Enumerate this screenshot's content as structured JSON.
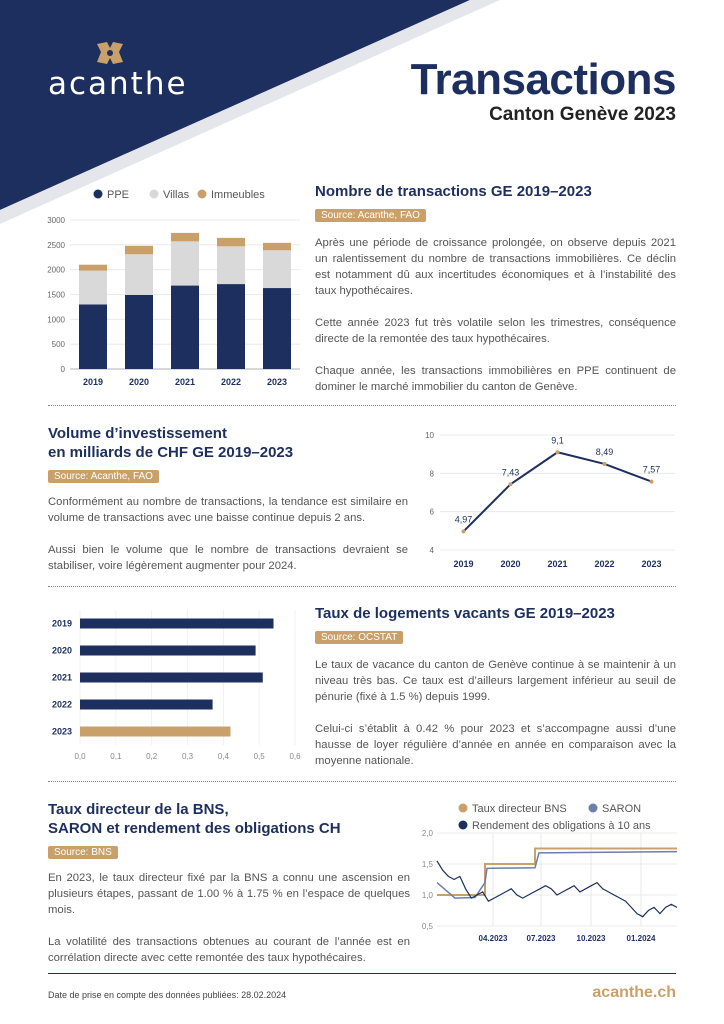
{
  "brand": {
    "name": "acanthe",
    "url": "acanthe.ch"
  },
  "header": {
    "title": "Transactions",
    "subtitle": "Canton Genève 2023"
  },
  "colors": {
    "navy": "#1d2f5e",
    "gold": "#c9a06a",
    "light": "#d9d9d9"
  },
  "section1": {
    "title": "Nombre de transactions GE 2019–2023",
    "source": "Source: Acanthe, FAO",
    "paragraphs": [
      "Après une période de croissance prolongée, on observe depuis 2021 un ralentissement du nombre de transactions immobilières. Ce déclin est notamment dû aux incertitudes économiques et à l’instabilité des taux hypothécaires.",
      "Cette année 2023 fut très volatile selon les trimestres, conséquence directe de la remontée des taux hypothécaires.",
      "Chaque année, les transactions immobilières en PPE continuent de dominer le marché immobilier du canton de Genève."
    ]
  },
  "section2": {
    "title_line1": "Volume d’investissement",
    "title_line2": "en milliards de CHF GE 2019–2023",
    "source": "Source: Acanthe, FAO",
    "paragraphs": [
      "Conformément au nombre de transactions, la tendance est similaire en volume de transactions avec une baisse continue depuis 2 ans.",
      "Aussi bien le volume que le nombre de transactions devraient se stabiliser, voire légèrement augmenter pour 2024."
    ]
  },
  "section3": {
    "title": "Taux de logements vacants GE 2019–2023",
    "source": "Source: OCSTAT",
    "paragraphs": [
      "Le taux de vacance du canton de Genève continue à se maintenir à un niveau très bas. Ce taux est d’ailleurs largement inférieur au seuil de pénurie (fixé à 1.5 %) depuis 1999.",
      "Celui-ci s’établit à 0.42 % pour 2023 et s’accompagne aussi d’une hausse de loyer régulière d’année en année en comparaison avec la moyenne nationale."
    ]
  },
  "section4": {
    "title_line1": "Taux directeur de la BNS,",
    "title_line2": "SARON et rendement des obligations CH",
    "source": "Source: BNS",
    "paragraphs": [
      "En 2023, le taux directeur fixé par la BNS a connu une ascension en plusieurs étapes, passant de 1.00 % à 1.75 % en l’espace de quelques mois.",
      "La volatilité des transactions obtenues au courant de l’année est en corrélation directe avec cette remontée des taux hypothécaires."
    ]
  },
  "footer": {
    "note": "Date de prise en compte des données publiées: 28.02.2024"
  },
  "chart_data": [
    {
      "type": "bar",
      "stacked": true,
      "categories": [
        "2019",
        "2020",
        "2021",
        "2022",
        "2023"
      ],
      "series": [
        {
          "name": "PPE",
          "values": [
            1300,
            1490,
            1680,
            1710,
            1630
          ],
          "color": "#1d2f5e"
        },
        {
          "name": "Villas",
          "values": [
            680,
            820,
            890,
            760,
            760
          ],
          "color": "#d9d9d9"
        },
        {
          "name": "Immeubles",
          "values": [
            120,
            170,
            170,
            170,
            150
          ],
          "color": "#c9a06a"
        }
      ],
      "yticks": [
        "0",
        "500",
        "1000",
        "1500",
        "2000",
        "2500",
        "3000"
      ],
      "ylim": [
        0,
        3000
      ],
      "legend": "top"
    },
    {
      "type": "line",
      "categories": [
        "2019",
        "2020",
        "2021",
        "2022",
        "2023"
      ],
      "values": [
        4.97,
        7.43,
        9.1,
        8.49,
        7.57
      ],
      "labels": [
        "4,97",
        "7,43",
        "9,1",
        "8,49",
        "7,57"
      ],
      "yticks": [
        "4",
        "6",
        "8",
        "10"
      ],
      "ylim": [
        4,
        10
      ]
    },
    {
      "type": "bar",
      "orientation": "horizontal",
      "categories": [
        "2019",
        "2020",
        "2021",
        "2022",
        "2023"
      ],
      "values": [
        0.54,
        0.49,
        0.51,
        0.37,
        0.42
      ],
      "xticks": [
        "0,0",
        "0,1",
        "0,2",
        "0,3",
        "0,4",
        "0,5",
        "0,6"
      ],
      "xlim": [
        0,
        0.6
      ]
    },
    {
      "type": "line",
      "series": [
        {
          "name": "Taux directeur BNS",
          "color": "#c9a06a"
        },
        {
          "name": "SARON",
          "color": "#6b7fa8"
        },
        {
          "name": "Rendement des obligations à 10 ans",
          "color": "#1d2f5e"
        }
      ],
      "xticks": [
        "04.2023",
        "07.2023",
        "10.2023",
        "01.2024"
      ],
      "yticks": [
        "0,5",
        "1,0",
        "1,5",
        "2,0"
      ],
      "ylim": [
        0.5,
        2.0
      ]
    }
  ]
}
